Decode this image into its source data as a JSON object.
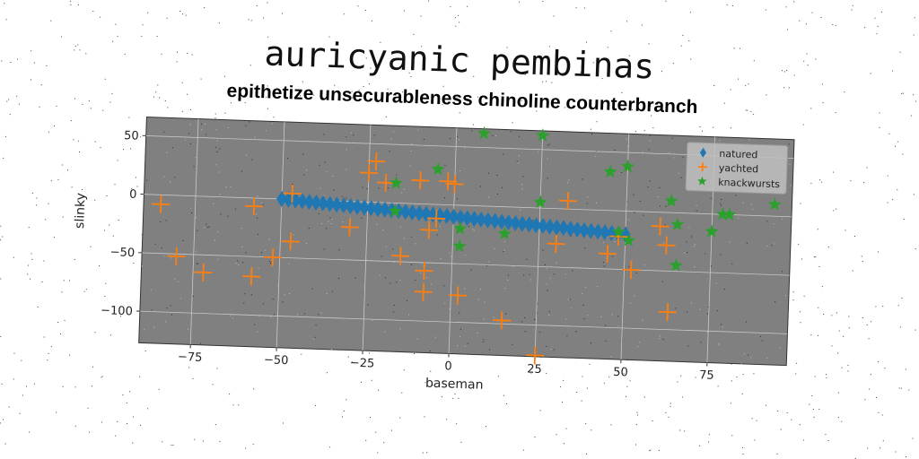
{
  "chart_data": {
    "type": "scatter",
    "title": "auricyanic pembinas",
    "subtitle": "epithetize unsecurableness chinoline counterbranch",
    "xlabel": "baseman",
    "ylabel": "slinky",
    "xlim": [
      -90,
      98
    ],
    "ylim": [
      -127,
      66
    ],
    "xticks": [
      -75,
      -50,
      -25,
      0,
      25,
      50,
      75
    ],
    "yticks": [
      50,
      0,
      -50,
      -100
    ],
    "xtick_labels": [
      "−75",
      "−50",
      "−25",
      "0",
      "25",
      "50",
      "75"
    ],
    "ytick_labels": [
      "50",
      "0",
      "−50",
      "−100"
    ],
    "grid": true,
    "background": "#808080",
    "legend_position": "top-right",
    "series": [
      {
        "name": "natured",
        "marker": "diamond",
        "color": "#1f77b4",
        "x": [
          -50,
          -48,
          -46,
          -44,
          -42,
          -40,
          -38,
          -36,
          -34,
          -32,
          -30,
          -28,
          -26,
          -24,
          -22,
          -20,
          -18,
          -16,
          -14,
          -12,
          -10,
          -8,
          -6,
          -4,
          -2,
          0,
          2,
          4,
          6,
          8,
          10,
          12,
          14,
          16,
          18,
          20,
          22,
          24,
          26,
          28,
          30,
          32,
          34,
          36,
          38,
          40,
          42,
          44,
          46,
          48,
          50
        ],
        "y": [
          0,
          -0.4,
          -0.8,
          -1.2,
          -1.6,
          -2,
          -2.4,
          -2.8,
          -3.2,
          -3.6,
          -4,
          -4.4,
          -4.8,
          -5.2,
          -5.6,
          -6,
          -6.4,
          -6.8,
          -7.2,
          -7.6,
          -8,
          -8.4,
          -8.8,
          -9.2,
          -9.6,
          -10,
          -10.4,
          -10.8,
          -11.2,
          -11.6,
          -12,
          -12.4,
          -12.8,
          -13.2,
          -13.6,
          -14,
          -14.4,
          -14.8,
          -15.2,
          -15.6,
          -16,
          -16.4,
          -16.8,
          -17.2,
          -17.6,
          -18,
          -18.4,
          -18.8,
          -19.2,
          -19.6,
          -20
        ]
      },
      {
        "name": "yachted",
        "marker": "plus",
        "color": "#ff7f0e",
        "x": [
          -85,
          -80,
          -72,
          -58,
          -58,
          -52,
          -47,
          -47,
          -30,
          -25,
          -23,
          -20,
          -15,
          -10,
          -8,
          -8,
          -7,
          -5,
          -2,
          0,
          2,
          15,
          25,
          30,
          33,
          45,
          48,
          52,
          60,
          62,
          63
        ],
        "y": [
          -8,
          -52,
          -65,
          -67,
          -7,
          -50,
          -36,
          5,
          -22,
          25,
          35,
          17,
          -45,
          20,
          -57,
          -75,
          -22,
          -12,
          20,
          18,
          -77,
          -97,
          -126,
          -30,
          7,
          -37,
          -22,
          -50,
          -12,
          -28,
          -85
        ]
      },
      {
        "name": "knackwursts",
        "marker": "star",
        "color": "#2ca02c",
        "x": [
          -17,
          -17,
          -5,
          2,
          2,
          8,
          15,
          25,
          25,
          45,
          48,
          50,
          51,
          63,
          65,
          65,
          75,
          78,
          80,
          93
        ],
        "y": [
          17,
          -7,
          30,
          -20,
          -35,
          62,
          -23,
          5,
          62,
          33,
          -18,
          38,
          -25,
          10,
          -10,
          -45,
          -15,
          0,
          0,
          10
        ]
      }
    ]
  }
}
